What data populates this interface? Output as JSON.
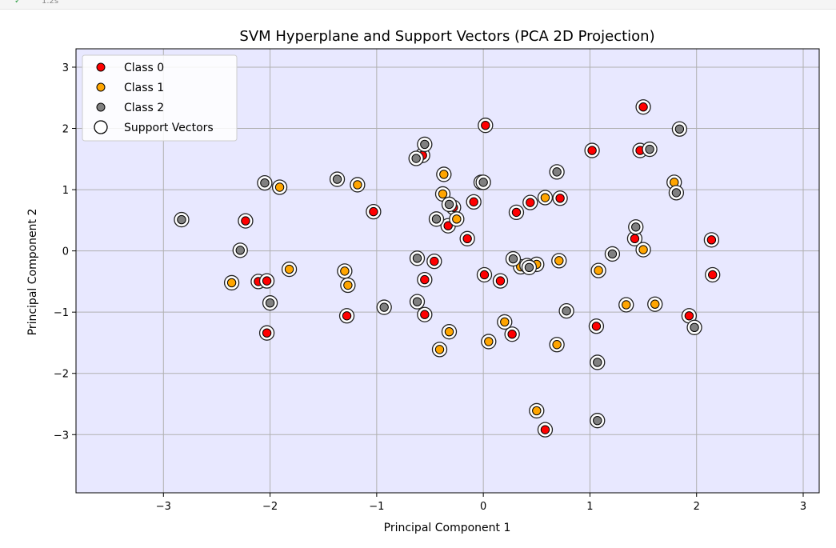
{
  "cell_status": {
    "icon": "check-icon",
    "time": "1.2s"
  },
  "chart_data": {
    "type": "scatter",
    "title": "SVM Hyperplane and Support Vectors (PCA 2D Projection)",
    "xlabel": "Principal Component 1",
    "ylabel": "Principal Component 2",
    "xlim": [
      -3.82,
      3.15
    ],
    "ylim": [
      -3.95,
      3.3
    ],
    "xticks": [
      -3,
      -2,
      -1,
      0,
      1,
      2,
      3
    ],
    "yticks": [
      -3,
      -2,
      -1,
      0,
      1,
      2,
      3
    ],
    "xtick_labels": [
      "−3",
      "−2",
      "−1",
      "0",
      "1",
      "2",
      "3"
    ],
    "ytick_labels": [
      "−3",
      "−2",
      "−1",
      "0",
      "1",
      "2",
      "3"
    ],
    "grid": true,
    "background_color": "#e8e8ff",
    "legend_position": "top-left",
    "legend": [
      "Class 0",
      "Class 1",
      "Class 2",
      "Support Vectors"
    ],
    "series": [
      {
        "name": "Class 0",
        "color": "#ff0000",
        "points": [
          [
            -2.23,
            0.49
          ],
          [
            -2.11,
            -0.5
          ],
          [
            -2.03,
            -0.49
          ],
          [
            -2.03,
            -1.34
          ],
          [
            -1.28,
            -1.06
          ],
          [
            -1.03,
            0.64
          ],
          [
            -0.57,
            1.56
          ],
          [
            -0.55,
            -0.47
          ],
          [
            -0.55,
            -1.04
          ],
          [
            -0.46,
            -0.17
          ],
          [
            -0.33,
            0.41
          ],
          [
            -0.28,
            0.71
          ],
          [
            -0.15,
            0.2
          ],
          [
            -0.09,
            0.8
          ],
          [
            0.02,
            2.05
          ],
          [
            0.01,
            -0.39
          ],
          [
            0.16,
            -0.49
          ],
          [
            0.27,
            -1.36
          ],
          [
            0.31,
            0.63
          ],
          [
            0.44,
            0.79
          ],
          [
            0.58,
            -2.92
          ],
          [
            0.72,
            0.86
          ],
          [
            1.02,
            1.64
          ],
          [
            1.06,
            -1.23
          ],
          [
            1.42,
            0.2
          ],
          [
            1.47,
            1.64
          ],
          [
            1.5,
            2.35
          ],
          [
            1.93,
            -1.06
          ],
          [
            2.14,
            0.18
          ],
          [
            2.15,
            -0.39
          ]
        ]
      },
      {
        "name": "Class 1",
        "color": "#ffa500",
        "points": [
          [
            -2.36,
            -0.52
          ],
          [
            -1.91,
            1.04
          ],
          [
            -1.82,
            -0.3
          ],
          [
            -1.3,
            -0.33
          ],
          [
            -1.27,
            -0.56
          ],
          [
            -1.18,
            1.08
          ],
          [
            -0.41,
            -1.61
          ],
          [
            -0.38,
            0.93
          ],
          [
            -0.37,
            1.25
          ],
          [
            -0.32,
            -1.32
          ],
          [
            -0.25,
            0.52
          ],
          [
            0.05,
            -1.48
          ],
          [
            0.2,
            -1.16
          ],
          [
            0.35,
            -0.26
          ],
          [
            0.5,
            -0.22
          ],
          [
            0.5,
            -2.61
          ],
          [
            0.58,
            0.87
          ],
          [
            0.69,
            -1.53
          ],
          [
            0.71,
            -0.16
          ],
          [
            1.08,
            -0.32
          ],
          [
            1.34,
            -0.88
          ],
          [
            1.5,
            0.02
          ],
          [
            1.61,
            -0.87
          ],
          [
            1.79,
            1.12
          ]
        ]
      },
      {
        "name": "Class 2",
        "color": "#808080",
        "points": [
          [
            -2.83,
            0.51
          ],
          [
            -2.28,
            0.01
          ],
          [
            -2.05,
            1.11
          ],
          [
            -2.0,
            -0.85
          ],
          [
            -1.37,
            1.17
          ],
          [
            -0.93,
            -0.92
          ],
          [
            -0.63,
            1.51
          ],
          [
            -0.62,
            -0.12
          ],
          [
            -0.62,
            -0.83
          ],
          [
            -0.55,
            1.74
          ],
          [
            -0.44,
            0.52
          ],
          [
            -0.32,
            0.76
          ],
          [
            -0.02,
            1.12
          ],
          [
            0.0,
            1.12
          ],
          [
            0.28,
            -0.13
          ],
          [
            0.41,
            -0.24
          ],
          [
            0.43,
            -0.27
          ],
          [
            0.69,
            1.29
          ],
          [
            0.78,
            -0.98
          ],
          [
            1.07,
            -1.82
          ],
          [
            1.07,
            -2.77
          ],
          [
            1.21,
            -0.05
          ],
          [
            1.43,
            0.39
          ],
          [
            1.56,
            1.66
          ],
          [
            1.81,
            0.95
          ],
          [
            1.84,
            1.99
          ],
          [
            1.98,
            -1.25
          ]
        ]
      }
    ],
    "support_vectors": "all points are circled as support vectors"
  }
}
